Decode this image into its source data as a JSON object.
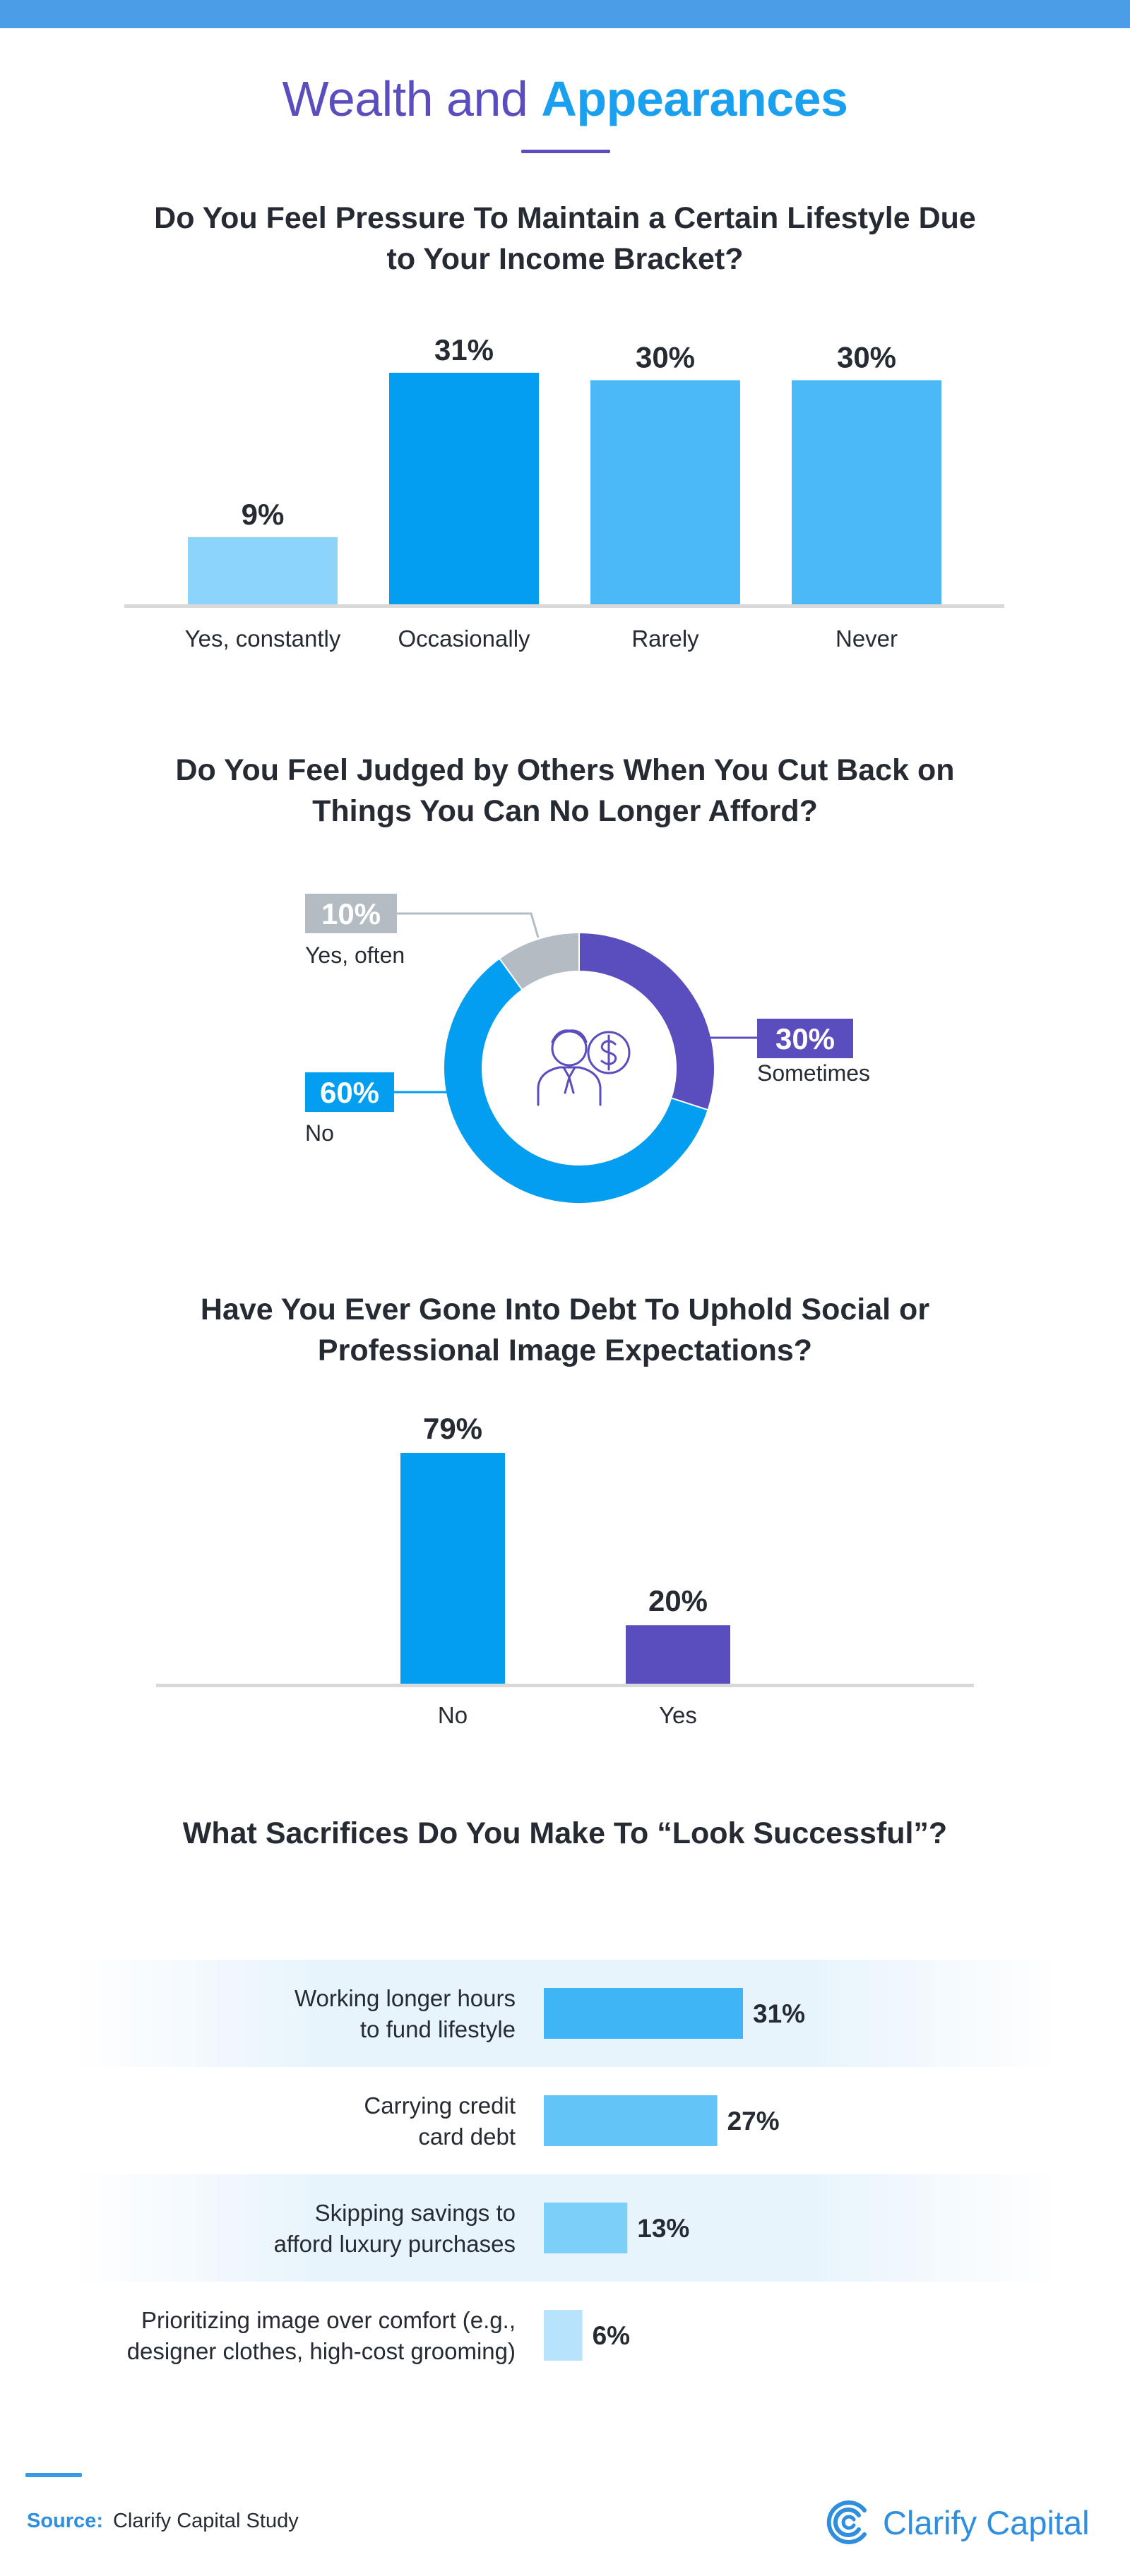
{
  "header": {
    "title_part1": "Wealth and",
    "title_part2": "Appearances"
  },
  "colors": {
    "top_bar": "#4b9de8",
    "purple": "#5a4dbd",
    "blue": "#049ef0",
    "blue_mid": "#4ab9f5",
    "blue_light": "#8cd4fa",
    "gray": "#b3bcc3",
    "axis": "#d9d9d9"
  },
  "chart_data": [
    {
      "type": "bar",
      "title": "Do You Feel Pressure To Maintain a Certain Lifestyle Due to Your Income Bracket?",
      "categories": [
        "Yes, constantly",
        "Occasionally",
        "Rarely",
        "Never"
      ],
      "values": [
        9,
        31,
        30,
        30
      ],
      "value_labels": [
        "9%",
        "31%",
        "30%",
        "30%"
      ],
      "colors": [
        "#8cd4fa",
        "#049ef0",
        "#4ab9f5",
        "#4ab9f5"
      ],
      "ylim": [
        0,
        31
      ]
    },
    {
      "type": "pie",
      "title": "Do You Feel Judged by Others When You Cut Back on Things You Can No Longer Afford?",
      "slices": [
        {
          "label": "Sometimes",
          "value": 30,
          "value_label": "30%",
          "color": "#5a4dbd"
        },
        {
          "label": "No",
          "value": 60,
          "value_label": "60%",
          "color": "#049ef0"
        },
        {
          "label": "Yes, often",
          "value": 10,
          "value_label": "10%",
          "color": "#b3bcc3"
        }
      ]
    },
    {
      "type": "bar",
      "title": "Have You Ever Gone Into Debt To Uphold Social or Professional Image Expectations?",
      "categories": [
        "No",
        "Yes"
      ],
      "values": [
        79,
        20
      ],
      "value_labels": [
        "79%",
        "20%"
      ],
      "colors": [
        "#049ef0",
        "#5a4dbd"
      ],
      "ylim": [
        0,
        79
      ]
    },
    {
      "type": "bar",
      "orientation": "horizontal",
      "title": "What Sacrifices Do You Make To “Look Successful”?",
      "categories": [
        [
          "Working longer hours",
          "to fund lifestyle"
        ],
        [
          "Carrying credit",
          "card debt"
        ],
        [
          "Skipping savings to",
          "afford luxury purchases"
        ],
        [
          "Prioritizing image over comfort (e.g.,",
          "designer clothes, high-cost grooming)"
        ]
      ],
      "values": [
        31,
        27,
        13,
        6
      ],
      "value_labels": [
        "31%",
        "27%",
        "13%",
        "6%"
      ],
      "colors": [
        "#3fb5f5",
        "#62c4f7",
        "#7ccff9",
        "#b8e3fc"
      ],
      "xlim": [
        0,
        31
      ]
    }
  ],
  "footer": {
    "source_label": "Source:",
    "source_text": "Clarify Capital Study",
    "brand": "Clarify Capital"
  }
}
